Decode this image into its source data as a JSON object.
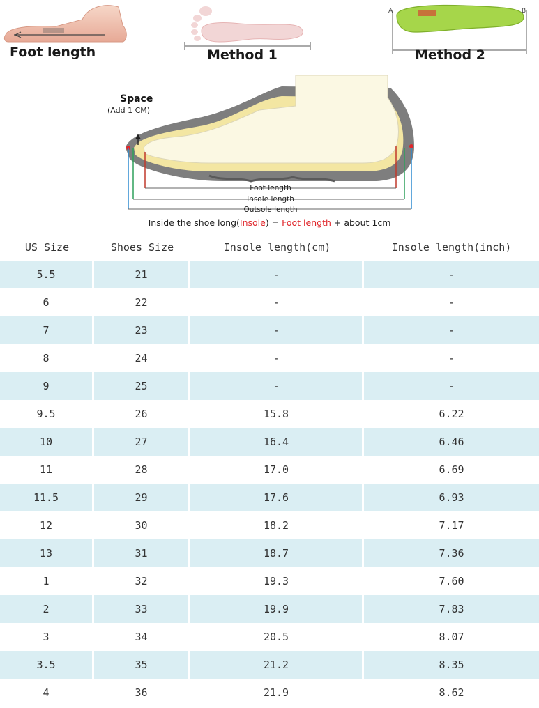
{
  "guide": {
    "foot_length_label": "Foot length",
    "method1_label": "Method 1",
    "method2_label": "Method 2",
    "insole_end_a": "A",
    "insole_end_b": "B"
  },
  "diagram": {
    "space_label": "Space",
    "space_note": "(Add 1 CM)",
    "foot_length_label": "Foot length",
    "insole_length_label": "Insole length",
    "outsole_length_label": "Outsole length",
    "caption_prefix": "Inside the shoe long(",
    "caption_insole": "Insole",
    "caption_mid": ") = ",
    "caption_foot": "Foot length",
    "caption_suffix": " + about 1cm"
  },
  "table": {
    "headers": [
      "US Size",
      "Shoes Size",
      "Insole length(cm)",
      "Insole length(inch)"
    ],
    "rows": [
      [
        "5.5",
        "21",
        "-",
        "-"
      ],
      [
        "6",
        "22",
        "-",
        "-"
      ],
      [
        "7",
        "23",
        "-",
        "-"
      ],
      [
        "8",
        "24",
        "-",
        "-"
      ],
      [
        "9",
        "25",
        "-",
        "-"
      ],
      [
        "9.5",
        "26",
        "15.8",
        "6.22"
      ],
      [
        "10",
        "27",
        "16.4",
        "6.46"
      ],
      [
        "11",
        "28",
        "17.0",
        "6.69"
      ],
      [
        "11.5",
        "29",
        "17.6",
        "6.93"
      ],
      [
        "12",
        "30",
        "18.2",
        "7.17"
      ],
      [
        "13",
        "31",
        "18.7",
        "7.36"
      ],
      [
        "1",
        "32",
        "19.3",
        "7.60"
      ],
      [
        "2",
        "33",
        "19.9",
        "7.83"
      ],
      [
        "3",
        "34",
        "20.5",
        "8.07"
      ],
      [
        "3.5",
        "35",
        "21.2",
        "8.35"
      ],
      [
        "4",
        "36",
        "21.9",
        "8.62"
      ]
    ]
  },
  "colors": {
    "row_shade": "#daeef3",
    "accent_red": "#e0262b",
    "accent_orange": "#e8a33a",
    "insole_green": "#a6d64a"
  }
}
